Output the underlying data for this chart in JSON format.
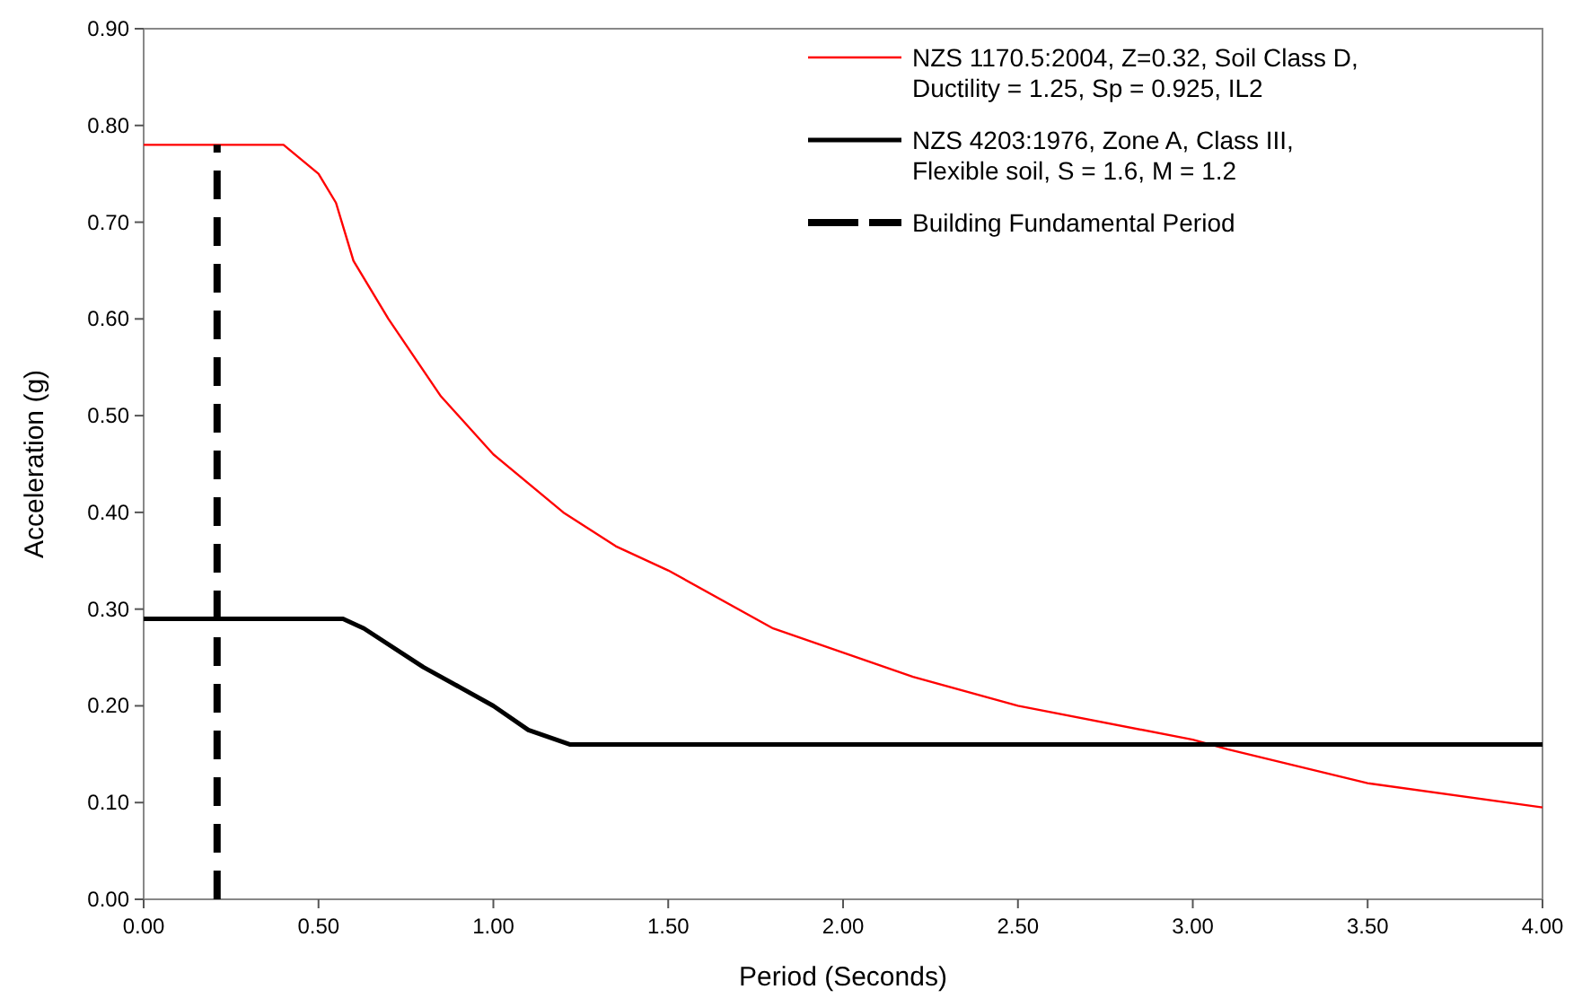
{
  "chart_data": {
    "type": "line",
    "xlabel": "Period (Seconds)",
    "ylabel": "Acceleration (g)",
    "xlim": [
      0,
      4
    ],
    "ylim": [
      0,
      0.9
    ],
    "xticks": [
      {
        "value": 0,
        "label": "0.00"
      },
      {
        "value": 0.5,
        "label": "0.50"
      },
      {
        "value": 1,
        "label": "1.00"
      },
      {
        "value": 1.5,
        "label": "1.50"
      },
      {
        "value": 2,
        "label": "2.00"
      },
      {
        "value": 2.5,
        "label": "2.50"
      },
      {
        "value": 3,
        "label": "3.00"
      },
      {
        "value": 3.5,
        "label": "3.50"
      },
      {
        "value": 4,
        "label": "4.00"
      }
    ],
    "yticks": [
      {
        "value": 0,
        "label": "0.00"
      },
      {
        "value": 0.1,
        "label": "0.10"
      },
      {
        "value": 0.2,
        "label": "0.20"
      },
      {
        "value": 0.3,
        "label": "0.30"
      },
      {
        "value": 0.4,
        "label": "0.40"
      },
      {
        "value": 0.5,
        "label": "0.50"
      },
      {
        "value": 0.6,
        "label": "0.60"
      },
      {
        "value": 0.7,
        "label": "0.70"
      },
      {
        "value": 0.8,
        "label": "0.80"
      },
      {
        "value": 0.9,
        "label": "0.90"
      }
    ],
    "grid": false,
    "legend": "top right",
    "marker": "none",
    "series": [
      {
        "name": "NZS 1170.5:2004, Z=0.32, Soil Class D, Ductility = 1.25, Sp = 0.925, IL2",
        "color": "#ff0000",
        "line_style": "solid",
        "x": [
          0,
          0.4,
          0.5,
          0.55,
          0.6,
          0.7,
          0.85,
          1.0,
          1.2,
          1.35,
          1.5,
          1.8,
          2.0,
          2.2,
          2.5,
          3.0,
          3.1,
          3.5,
          4.0
        ],
        "values": [
          0.78,
          0.78,
          0.75,
          0.72,
          0.66,
          0.6,
          0.52,
          0.46,
          0.4,
          0.365,
          0.34,
          0.28,
          0.255,
          0.23,
          0.2,
          0.165,
          0.155,
          0.12,
          0.095
        ]
      },
      {
        "name": "NZS 4203:1976, Zone A, Class III,  Flexible soil, S = 1.6, M = 1.2",
        "color": "#000000",
        "line_style": "solid",
        "x": [
          0,
          0.57,
          0.63,
          0.8,
          1.0,
          1.1,
          1.22,
          4.0
        ],
        "values": [
          0.29,
          0.29,
          0.28,
          0.24,
          0.2,
          0.175,
          0.16,
          0.16
        ]
      },
      {
        "name": "Building Fundamental Period",
        "color": "#000000",
        "line_style": "dashed",
        "x": [
          0.21,
          0.21
        ],
        "values": [
          0,
          0.78
        ]
      }
    ]
  }
}
